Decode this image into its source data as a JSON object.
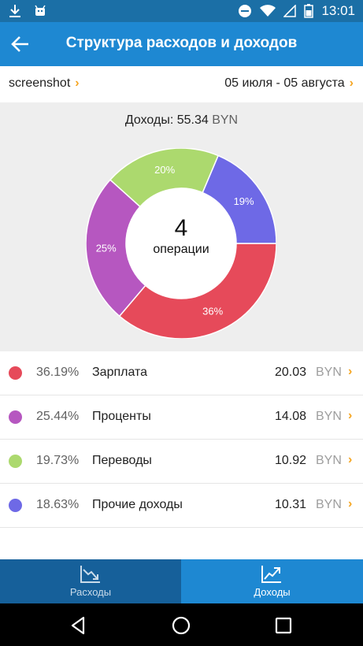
{
  "status_bar": {
    "time": "13:01"
  },
  "header": {
    "title": "Структура расходов и доходов"
  },
  "filter": {
    "account": "screenshot",
    "date_range": "05 июля - 05 августа"
  },
  "summary": {
    "income_label": "Доходы: 55.34",
    "currency": "BYN",
    "operations_count": "4",
    "operations_label": "операции"
  },
  "chart_data": {
    "type": "pie",
    "style": "donut",
    "slices": [
      {
        "label": "Зарплата",
        "value": 36.19,
        "display": "36%",
        "color": "#e64a5a"
      },
      {
        "label": "Проценты",
        "value": 25.44,
        "display": "25%",
        "color": "#b657c0"
      },
      {
        "label": "Переводы",
        "value": 19.73,
        "display": "20%",
        "color": "#acd96e"
      },
      {
        "label": "Прочие доходы",
        "value": 18.63,
        "display": "19%",
        "color": "#6e69e6"
      }
    ]
  },
  "rows": [
    {
      "percent": "36.19%",
      "name": "Зарплата",
      "amount": "20.03",
      "currency": "BYN",
      "color": "#e64a5a"
    },
    {
      "percent": "25.44%",
      "name": "Проценты",
      "amount": "14.08",
      "currency": "BYN",
      "color": "#b657c0"
    },
    {
      "percent": "19.73%",
      "name": "Переводы",
      "amount": "10.92",
      "currency": "BYN",
      "color": "#acd96e"
    },
    {
      "percent": "18.63%",
      "name": "Прочие доходы",
      "amount": "10.31",
      "currency": "BYN",
      "color": "#6e69e6"
    }
  ],
  "tabs": {
    "expenses": "Расходы",
    "income": "Доходы",
    "active": "income"
  },
  "colors": {
    "status_bar": "#1b6fa6",
    "app_bar": "#1e88d2",
    "accent": "#f5a623",
    "tab_inactive": "#16609a"
  }
}
